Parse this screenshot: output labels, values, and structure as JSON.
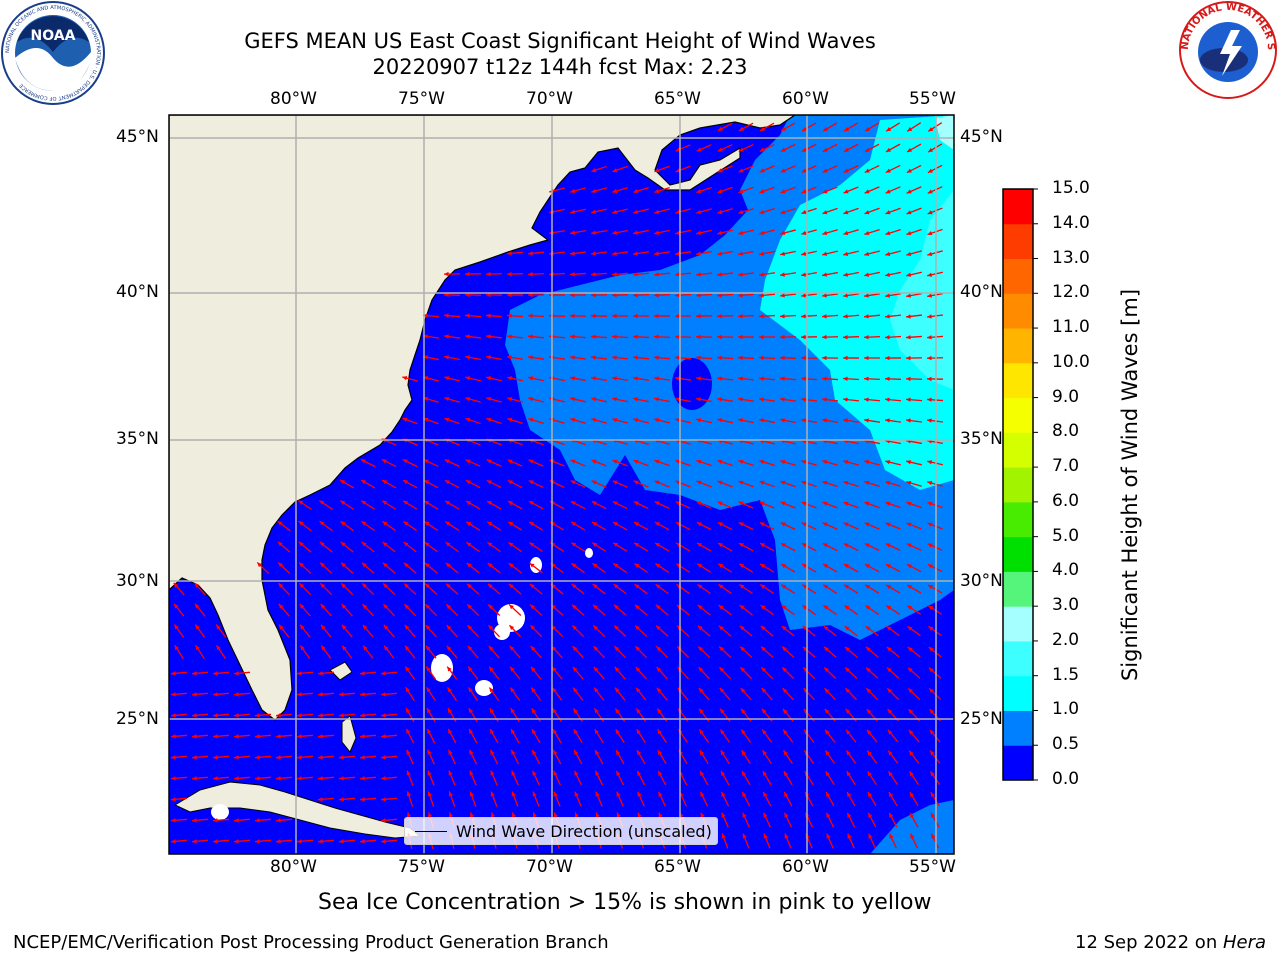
{
  "title": {
    "line1": "GEFS MEAN US East Coast Significant Height of Wind Waves",
    "line2": "20220907 t12z 144h fcst   Max: 2.23"
  },
  "map": {
    "lon_labels": [
      "80°W",
      "75°W",
      "70°W",
      "65°W",
      "60°W",
      "55°W"
    ],
    "lat_labels": [
      "45°N",
      "40°N",
      "35°N",
      "30°N",
      "25°N"
    ],
    "extent": {
      "lon": [
        -85,
        -54.3
      ],
      "lat": [
        20.5,
        46
      ]
    },
    "legend_label": "Wind Wave Direction (unscaled)",
    "arrow_color": "#ff0000",
    "land_color": "#efedde",
    "gridline_color": "#b0b0b0"
  },
  "colorbar": {
    "label": "Significant Height of Wind Waves [m]",
    "ticks": [
      "0.0",
      "0.5",
      "1.0",
      "1.5",
      "2.0",
      "3.0",
      "4.0",
      "5.0",
      "6.0",
      "7.0",
      "8.0",
      "9.0",
      "10.0",
      "11.0",
      "12.0",
      "13.0",
      "14.0",
      "15.0"
    ],
    "colors": [
      "#0000ff",
      "#007fff",
      "#00ffff",
      "#3dffff",
      "#a6ffff",
      "#55f47a",
      "#00e000",
      "#47ec00",
      "#a2f300",
      "#d4ff00",
      "#f5ff00",
      "#ffe600",
      "#ffb500",
      "#ff8c00",
      "#ff6600",
      "#ff3c00",
      "#ff0000"
    ]
  },
  "logos": {
    "noaa": "noaa-logo",
    "nws": "national-weather-service-logo",
    "noaa_text": "NOAA",
    "noaa_ring_text": "NATIONAL OCEANIC AND ATMOSPHERIC ADMINISTRATION · U.S. DEPARTMENT OF COMMERCE",
    "nws_ring_text": "NATIONAL WEATHER SERVICE"
  },
  "footer": {
    "note": "Sea Ice Concentration > 15% is shown in pink to yellow",
    "credit": "NCEP/EMC/Verification Post Processing Product Generation Branch",
    "date_prefix": "12 Sep 2022 on ",
    "date_host": "Hera"
  }
}
